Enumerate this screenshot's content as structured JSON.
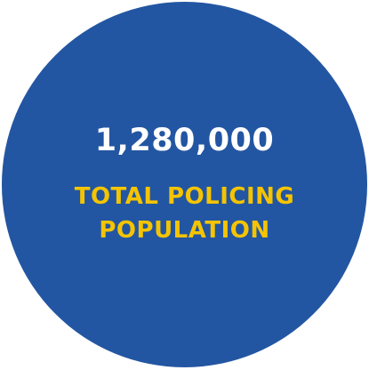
{
  "stat": {
    "value": "1,280,000",
    "label_lines": [
      "TOTAL POLICING",
      "POPULATION"
    ]
  },
  "colors": {
    "circle_fill": "#2356A2",
    "value_text": "#FFFFFF",
    "label_text": "#F5C400"
  }
}
